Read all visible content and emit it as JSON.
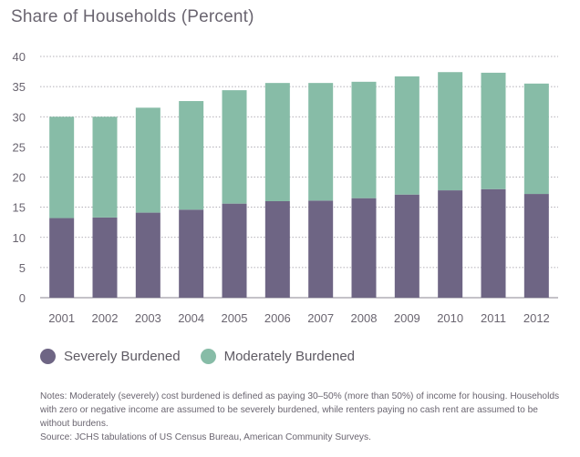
{
  "chart_data": {
    "type": "bar",
    "stacked": true,
    "title": "Share of Households (Percent)",
    "categories": [
      "2001",
      "2002",
      "2003",
      "2004",
      "2005",
      "2006",
      "2007",
      "2008",
      "2009",
      "2010",
      "2011",
      "2012"
    ],
    "series": [
      {
        "name": "Severely Burdened",
        "color": "#6e6584",
        "values": [
          13.2,
          13.3,
          14.1,
          14.6,
          15.6,
          16.0,
          16.1,
          16.5,
          17.1,
          17.8,
          18.0,
          17.2
        ]
      },
      {
        "name": "Moderately Burdened",
        "color": "#87bca7",
        "values": [
          16.8,
          16.7,
          17.4,
          18.0,
          18.8,
          19.6,
          19.5,
          19.3,
          19.6,
          19.6,
          19.3,
          18.3
        ]
      }
    ],
    "ylim": [
      0,
      40
    ],
    "yticks": [
      0,
      5,
      10,
      15,
      20,
      25,
      30,
      35,
      40
    ],
    "grid": true,
    "legend": "bottom-left"
  },
  "notes": {
    "text": "Notes: Moderately (severely) cost burdened is defined as paying 30–50% (more than 50%) of income for housing. Households with zero or negative income are assumed to be severely burdened, while renters paying no cash rent are assumed to be without burdens.",
    "source": "Source: JCHS tabulations of US Census Bureau, American Community Surveys."
  }
}
